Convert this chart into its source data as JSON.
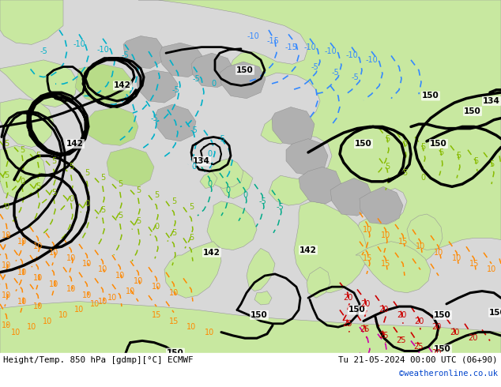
{
  "title_left": "Height/Temp. 850 hPa [gdmp][°C] ECMWF",
  "title_right": "Tu 21-05-2024 00:00 UTC (06+90)",
  "credit": "©weatheronline.co.uk",
  "land_green": "#c8e8a0",
  "land_green2": "#b8dc88",
  "sea_gray": "#d8d8d8",
  "terrain_gray": "#b0b0b0",
  "fig_width": 6.34,
  "fig_height": 4.9,
  "dpi": 100
}
